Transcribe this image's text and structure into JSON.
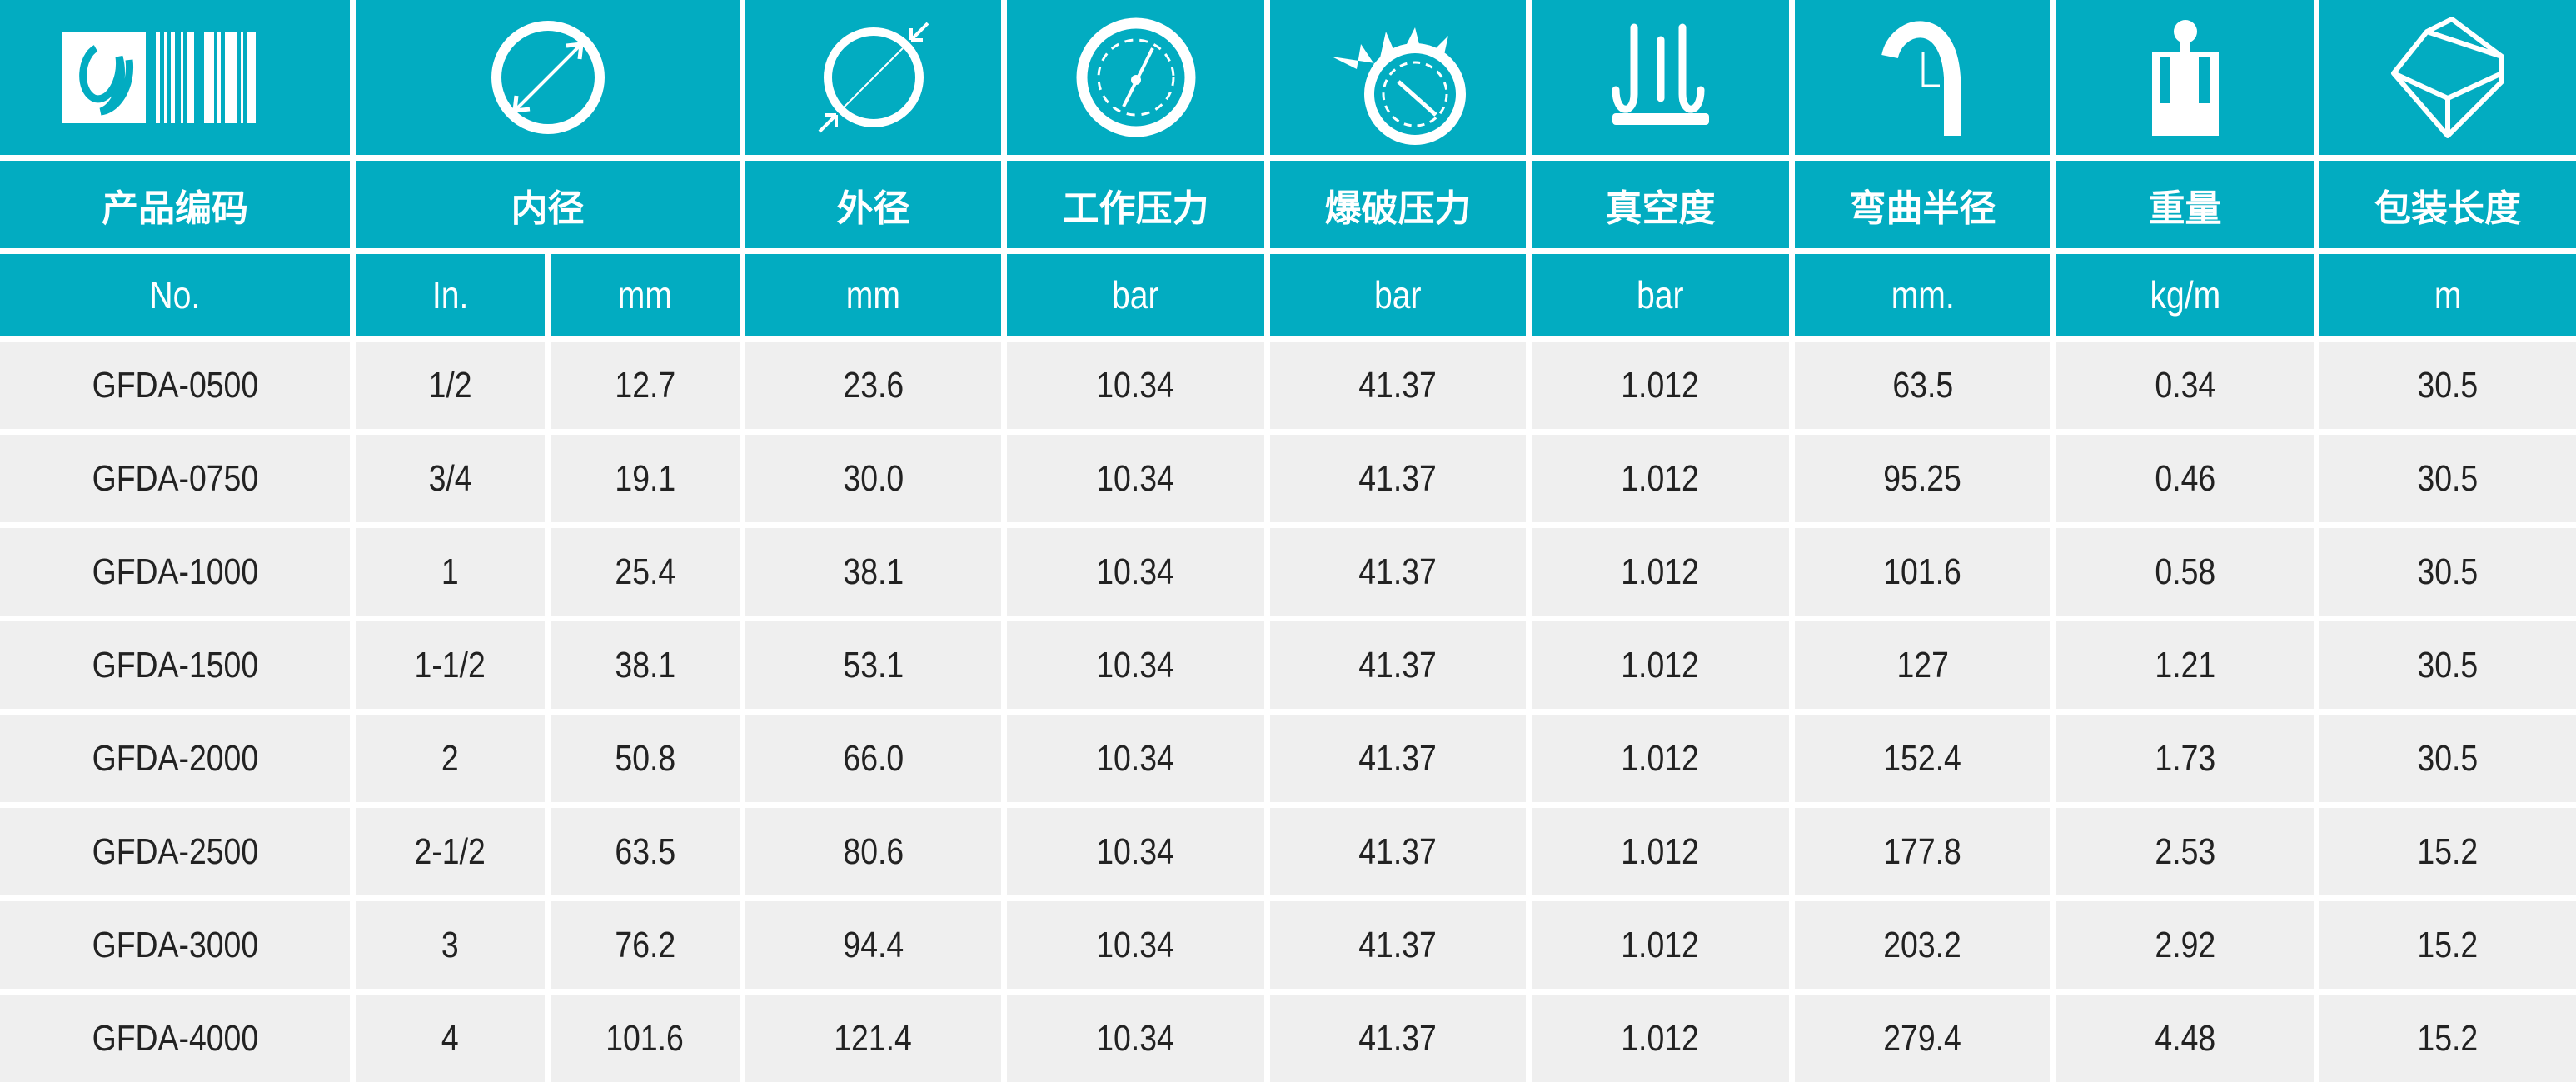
{
  "colors": {
    "header_bg": "#02acc1",
    "row_bg": "#efefef",
    "text": "#222222"
  },
  "icons": [
    "barcode-logo-icon",
    "inner-diameter-icon",
    "outer-diameter-icon",
    "pressure-gauge-icon",
    "burst-gauge-icon",
    "vacuum-icon",
    "bend-radius-icon",
    "weight-icon",
    "package-box-icon"
  ],
  "headers": [
    "产品编码",
    "内径",
    "外径",
    "工作压力",
    "爆破压力",
    "真空度",
    "弯曲半径",
    "重量",
    "包装长度"
  ],
  "units": [
    "No.",
    "In.",
    "mm",
    "mm",
    "bar",
    "bar",
    "bar",
    "mm.",
    "kg/m",
    "m"
  ],
  "rows": [
    [
      "GFDA-0500",
      "1/2",
      "12.7",
      "23.6",
      "10.34",
      "41.37",
      "1.012",
      "63.5",
      "0.34",
      "30.5"
    ],
    [
      "GFDA-0750",
      "3/4",
      "19.1",
      "30.0",
      "10.34",
      "41.37",
      "1.012",
      "95.25",
      "0.46",
      "30.5"
    ],
    [
      "GFDA-1000",
      "1",
      "25.4",
      "38.1",
      "10.34",
      "41.37",
      "1.012",
      "101.6",
      "0.58",
      "30.5"
    ],
    [
      "GFDA-1500",
      "1-1/2",
      "38.1",
      "53.1",
      "10.34",
      "41.37",
      "1.012",
      "127",
      "1.21",
      "30.5"
    ],
    [
      "GFDA-2000",
      "2",
      "50.8",
      "66.0",
      "10.34",
      "41.37",
      "1.012",
      "152.4",
      "1.73",
      "30.5"
    ],
    [
      "GFDA-2500",
      "2-1/2",
      "63.5",
      "80.6",
      "10.34",
      "41.37",
      "1.012",
      "177.8",
      "2.53",
      "15.2"
    ],
    [
      "GFDA-3000",
      "3",
      "76.2",
      "94.4",
      "10.34",
      "41.37",
      "1.012",
      "203.2",
      "2.92",
      "15.2"
    ],
    [
      "GFDA-4000",
      "4",
      "101.6",
      "121.4",
      "10.34",
      "41.37",
      "1.012",
      "279.4",
      "4.48",
      "15.2"
    ]
  ]
}
